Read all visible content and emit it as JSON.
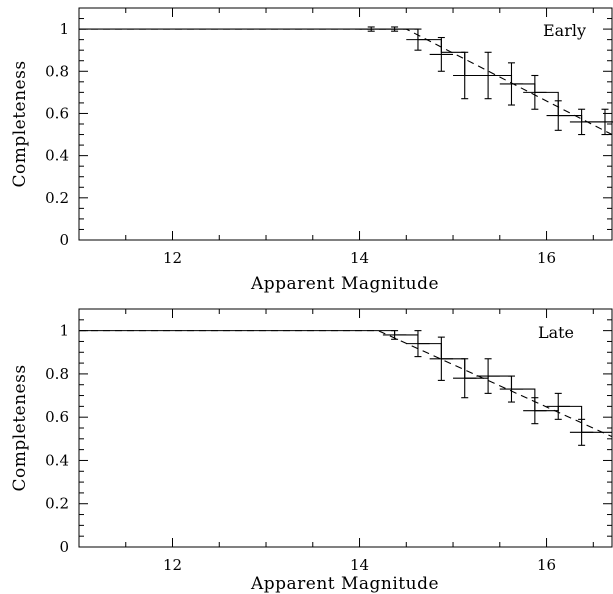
{
  "chart_data": [
    {
      "type": "line",
      "annotation": "Early",
      "xlabel": "Apparent Magnitude",
      "ylabel": "Completeness",
      "xlim": [
        11,
        16.7
      ],
      "ylim": [
        0,
        1.1
      ],
      "x_ticks": [
        "12",
        "14",
        "16"
      ],
      "y_ticks": [
        "0",
        "0.2",
        "0.4",
        "0.6",
        "0.8",
        "1"
      ],
      "grid": false,
      "series": [
        {
          "style": "step",
          "x": [
            11.0,
            14.125,
            14.375,
            14.625,
            14.875,
            15.125,
            15.375,
            15.625,
            15.875,
            16.125,
            16.375
          ],
          "y": [
            1.0,
            1.0,
            1.0,
            0.95,
            0.89,
            0.78,
            0.78,
            0.74,
            0.7,
            0.59,
            0.56
          ],
          "x_end": 16.7
        },
        {
          "style": "errorbar",
          "x": [
            14.125,
            14.375,
            14.625,
            14.875,
            15.125,
            15.375,
            15.625,
            15.875,
            16.125,
            16.375,
            16.625
          ],
          "y": [
            1.0,
            1.0,
            0.95,
            0.88,
            0.78,
            0.78,
            0.74,
            0.7,
            0.59,
            0.56,
            0.56
          ],
          "err": [
            0.01,
            0.01,
            0.05,
            0.08,
            0.11,
            0.11,
            0.1,
            0.08,
            0.07,
            0.06,
            0.06
          ]
        },
        {
          "style": "dashed",
          "x": [
            11.0,
            14.5,
            16.7
          ],
          "y": [
            1.0,
            1.0,
            0.5
          ]
        }
      ]
    },
    {
      "type": "line",
      "annotation": "Late",
      "xlabel": "Apparent Magnitude",
      "ylabel": "Completeness",
      "xlim": [
        11,
        16.7
      ],
      "ylim": [
        0,
        1.1
      ],
      "x_ticks": [
        "12",
        "14",
        "16"
      ],
      "y_ticks": [
        "0",
        "0.2",
        "0.4",
        "0.6",
        "0.8",
        "1"
      ],
      "grid": false,
      "series": [
        {
          "style": "step",
          "x": [
            11.0,
            14.125,
            14.375,
            14.625,
            14.875,
            15.125,
            15.375,
            15.625,
            15.875,
            16.125,
            16.375
          ],
          "y": [
            1.0,
            1.0,
            0.98,
            0.94,
            0.87,
            0.78,
            0.79,
            0.73,
            0.63,
            0.65,
            0.53
          ],
          "x_end": 16.7
        },
        {
          "style": "errorbar",
          "x": [
            14.375,
            14.625,
            14.875,
            15.125,
            15.375,
            15.625,
            15.875,
            16.125,
            16.375
          ],
          "y": [
            0.98,
            0.94,
            0.87,
            0.78,
            0.79,
            0.73,
            0.63,
            0.65,
            0.53
          ],
          "err": [
            0.02,
            0.06,
            0.1,
            0.09,
            0.08,
            0.06,
            0.06,
            0.06,
            0.06
          ]
        },
        {
          "style": "dashed",
          "x": [
            11.0,
            14.2,
            16.7
          ],
          "y": [
            1.0,
            1.0,
            0.51
          ]
        }
      ]
    }
  ]
}
